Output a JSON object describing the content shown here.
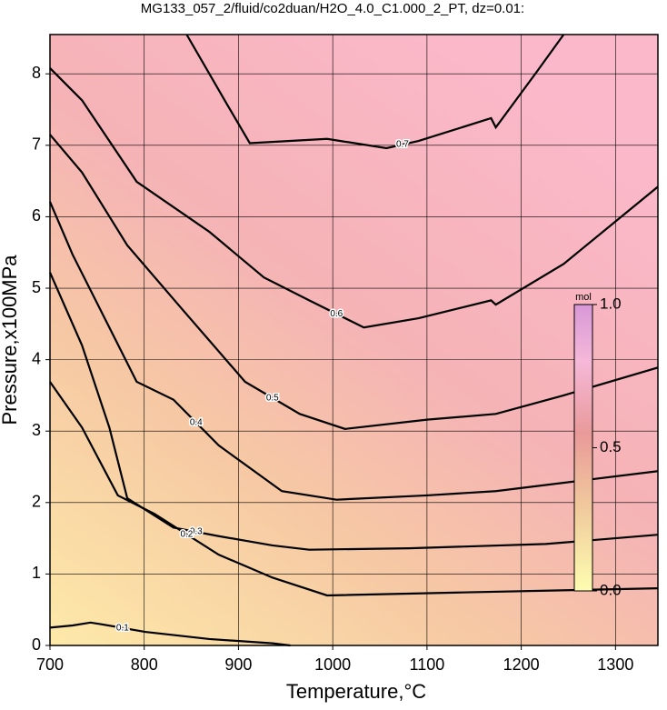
{
  "chart_data": {
    "type": "contour",
    "title": "MG133_057_2/fluid/co2duan/H2O_4.0_C1.000_2_PT, dz=0.01:",
    "xlabel": "Temperature,°C",
    "ylabel": "Pressure,x100MPa",
    "xlim": [
      700,
      1345
    ],
    "ylim": [
      0,
      8.55
    ],
    "xticks": [
      700,
      800,
      900,
      1000,
      1100,
      1200,
      1300
    ],
    "yticks": [
      0,
      1,
      2,
      3,
      4,
      5,
      6,
      7,
      8
    ],
    "grid": true,
    "contours": [
      {
        "level": 0.7,
        "x": [
          845,
          888,
          912,
          994,
          1057,
          1091,
          1168,
          1173,
          1216,
          1245
        ],
        "y": [
          8.55,
          7.57,
          7.03,
          7.09,
          6.96,
          7.06,
          7.38,
          7.25,
          8.02,
          8.55
        ]
      },
      {
        "level": 0.6,
        "x": [
          700,
          734,
          792,
          869,
          927,
          975,
          1033,
          1091,
          1168,
          1173,
          1245,
          1345
        ],
        "y": [
          8.08,
          7.63,
          6.49,
          5.79,
          5.15,
          4.83,
          4.45,
          4.58,
          4.83,
          4.77,
          5.34,
          6.42
        ]
      },
      {
        "level": 0.5,
        "x": [
          700,
          734,
          782,
          840,
          907,
          965,
          1013,
          1100,
          1173,
          1245,
          1345
        ],
        "y": [
          7.15,
          6.62,
          5.6,
          4.71,
          3.69,
          3.24,
          3.03,
          3.16,
          3.24,
          3.5,
          3.89
        ]
      },
      {
        "level": 0.4,
        "x": [
          700,
          724,
          763,
          792,
          831,
          879,
          946,
          1004,
          1100,
          1173,
          1345
        ],
        "y": [
          6.21,
          5.47,
          4.45,
          3.69,
          3.44,
          2.8,
          2.16,
          2.04,
          2.1,
          2.16,
          2.44
        ]
      },
      {
        "level": 0.3,
        "x": [
          700,
          734,
          763,
          782,
          831,
          879,
          936,
          975,
          1081,
          1226,
          1345
        ],
        "y": [
          5.22,
          4.2,
          3.05,
          2.06,
          1.65,
          1.53,
          1.4,
          1.34,
          1.36,
          1.42,
          1.55
        ]
      },
      {
        "level": 0.2,
        "x": [
          700,
          734,
          772,
          811,
          879,
          936,
          994,
          1129,
          1345
        ],
        "y": [
          3.69,
          3.05,
          2.1,
          1.84,
          1.27,
          0.95,
          0.7,
          0.74,
          0.8
        ]
      },
      {
        "level": 0.1,
        "x": [
          700,
          724,
          743,
          753,
          801,
          869,
          936,
          955
        ],
        "y": [
          0.25,
          0.28,
          0.32,
          0.3,
          0.19,
          0.09,
          0.03,
          0
        ]
      }
    ],
    "colorbar": {
      "label": "mol",
      "lim": [
        0,
        1
      ],
      "ticks": [
        {
          "value": 0,
          "label": "0.0"
        },
        {
          "value": 0.5,
          "label": "0.5"
        },
        {
          "value": 1,
          "label": "1.0"
        }
      ]
    }
  }
}
